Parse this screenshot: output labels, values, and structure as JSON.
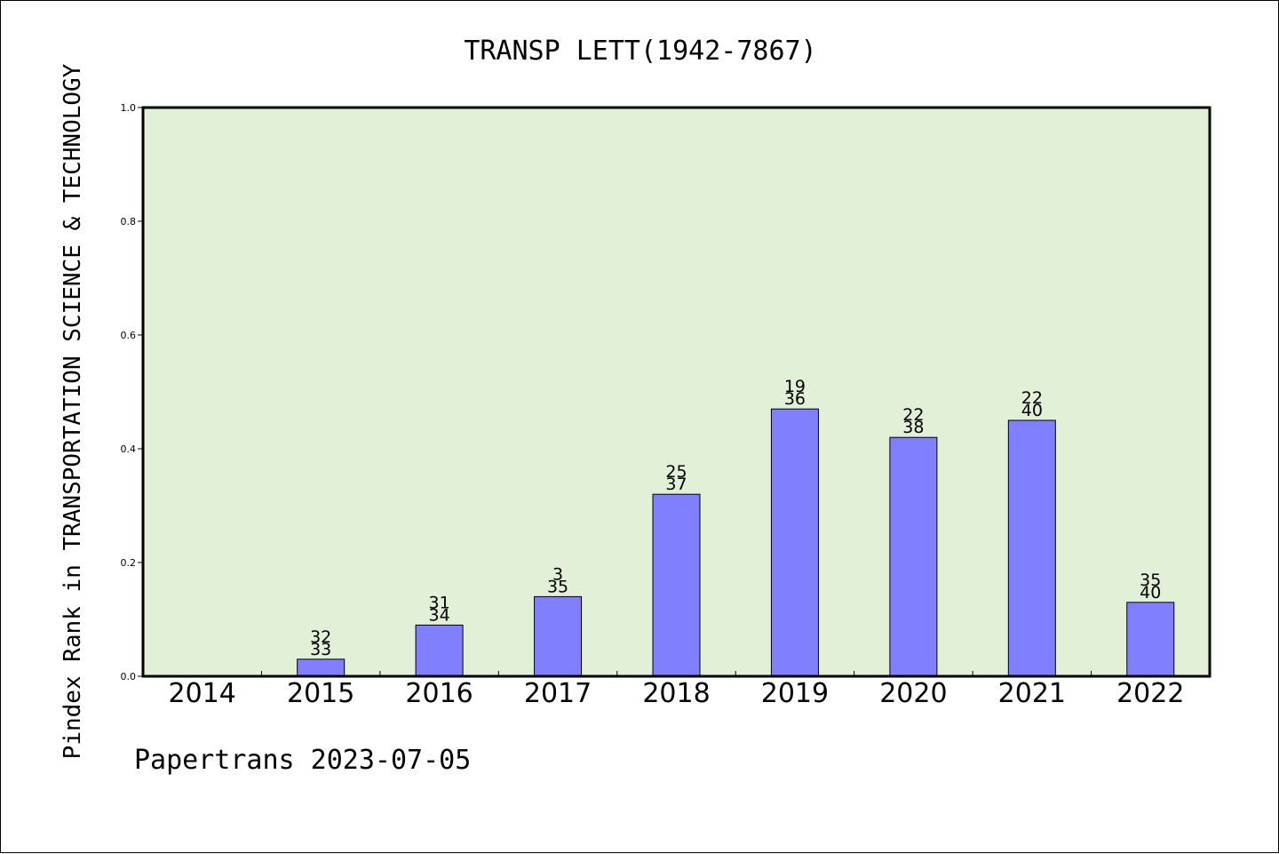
{
  "chart_data": {
    "type": "bar",
    "title": "TRANSP LETT(1942-7867)",
    "ylabel": "Pindex Rank in TRANSPORTATION SCIENCE & TECHNOLOGY",
    "xlabel": "",
    "footer": "Papertrans 2023-07-05",
    "categories": [
      "2014",
      "2015",
      "2016",
      "2017",
      "2018",
      "2019",
      "2020",
      "2021",
      "2022"
    ],
    "values": [
      0,
      0.03,
      0.09,
      0.14,
      0.32,
      0.47,
      0.42,
      0.45,
      0.13
    ],
    "bar_labels_top": [
      "",
      "32",
      "31",
      "3",
      "25",
      "19",
      "22",
      "22",
      "35"
    ],
    "bar_labels_bottom": [
      "",
      "33",
      "34",
      "35",
      "37",
      "36",
      "38",
      "40",
      "40"
    ],
    "ylim": [
      0,
      1.0
    ],
    "yticks": [
      "0.0",
      "0.2",
      "0.4",
      "0.6",
      "0.8",
      "1.0"
    ],
    "grid": false,
    "colors": {
      "plot_background": "#e2f0d7",
      "bar_fill": "#8080ff",
      "bar_stroke": "#000000"
    }
  }
}
